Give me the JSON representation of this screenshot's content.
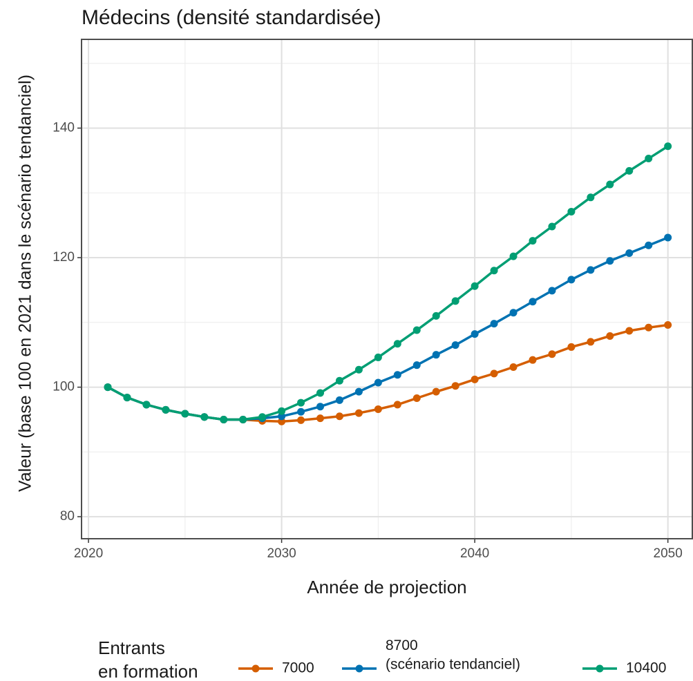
{
  "chart_data": {
    "type": "line",
    "title": "Médecins (densité standardisée)",
    "x_label": "Année de projection",
    "y_label": "Valeur (base 100 en 2021 dans le scénario tendanciel)",
    "legend_title": [
      "Entrants",
      "en formation"
    ],
    "x": [
      2021,
      2022,
      2023,
      2024,
      2025,
      2026,
      2027,
      2028,
      2029,
      2030,
      2031,
      2032,
      2033,
      2034,
      2035,
      2036,
      2037,
      2038,
      2039,
      2040,
      2041,
      2042,
      2043,
      2044,
      2045,
      2046,
      2047,
      2048,
      2049,
      2050
    ],
    "series": [
      {
        "name": "7000",
        "color": "#d55e00",
        "values": [
          100,
          98.4,
          97.3,
          96.5,
          95.9,
          95.4,
          95.0,
          95.0,
          94.8,
          94.7,
          94.9,
          95.2,
          95.5,
          96.0,
          96.6,
          97.3,
          98.3,
          99.3,
          100.2,
          101.2,
          102.1,
          103.1,
          104.2,
          105.1,
          106.2,
          107.0,
          107.9,
          108.7,
          109.2,
          109.6
        ]
      },
      {
        "name": "8700\n(scénario tendanciel)",
        "color": "#0072b2",
        "values": [
          100,
          98.4,
          97.3,
          96.5,
          95.9,
          95.4,
          95.0,
          95.0,
          95.2,
          95.5,
          96.2,
          97.0,
          98.0,
          99.3,
          100.7,
          101.9,
          103.4,
          105.0,
          106.5,
          108.2,
          109.8,
          111.5,
          113.2,
          114.9,
          116.6,
          118.1,
          119.5,
          120.7,
          121.9,
          123.1
        ]
      },
      {
        "name": "10400",
        "color": "#009e73",
        "values": [
          100,
          98.4,
          97.3,
          96.5,
          95.9,
          95.4,
          95.0,
          95.0,
          95.4,
          96.3,
          97.6,
          99.1,
          101.0,
          102.7,
          104.6,
          106.7,
          108.8,
          111.0,
          113.3,
          115.6,
          118.0,
          120.2,
          122.6,
          124.8,
          127.1,
          129.3,
          131.3,
          133.4,
          135.3,
          137.2
        ]
      }
    ],
    "xlim": [
      2019.64,
      2051.3
    ],
    "xticks": [
      2020,
      2030,
      2040,
      2050
    ],
    "minor_xticks": [
      2025,
      2035,
      2045
    ],
    "ylim": [
      76.6,
      153.7
    ],
    "yticks": [
      80,
      100,
      120,
      140
    ],
    "minor_yticks": [
      90,
      110,
      130,
      150
    ],
    "grid": true,
    "legend": "bottom"
  }
}
